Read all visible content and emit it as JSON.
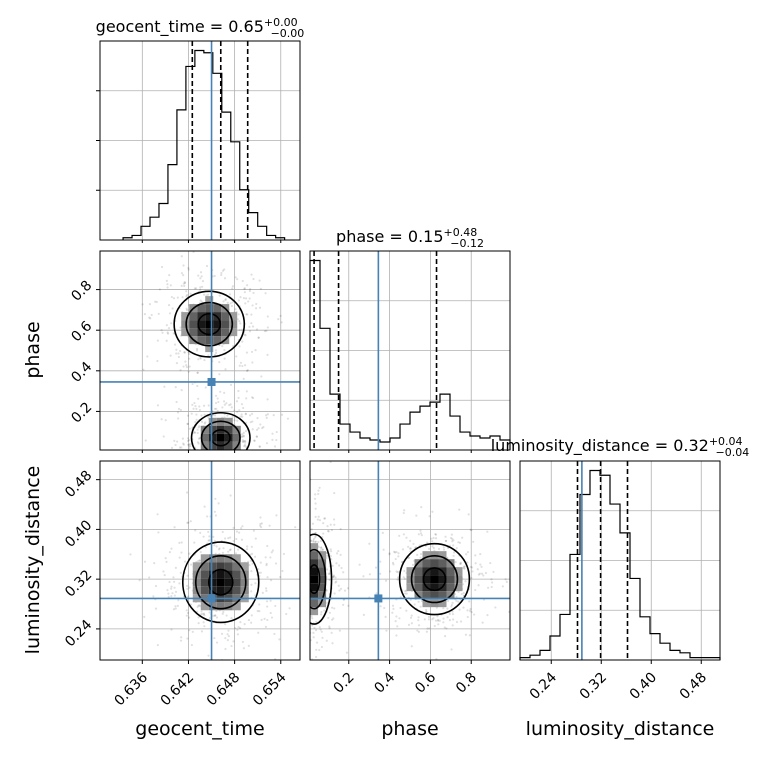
{
  "chart_data": {
    "type": "corner",
    "parameters": [
      "geocent_time",
      "phase",
      "luminosity_distance"
    ],
    "axis_labels": [
      "geocent_time",
      "phase",
      "luminosity_distance"
    ],
    "ranges": {
      "geocent_time": [
        0.6305,
        0.6565
      ],
      "phase": [
        0.01,
        0.99
      ],
      "luminosity_distance": [
        0.19,
        0.51
      ]
    },
    "ticks": {
      "geocent_time": [
        "0.636",
        "0.642",
        "0.648",
        "0.654"
      ],
      "phase": [
        "0.2",
        "0.4",
        "0.6",
        "0.8"
      ],
      "luminosity_distance": [
        "0.24",
        "0.32",
        "0.40",
        "0.48"
      ]
    },
    "truths": {
      "geocent_time": 0.645,
      "phase": 0.345,
      "luminosity_distance": 0.289
    },
    "titles": {
      "geocent_time": {
        "prefix": "geocent_time = ",
        "median": "0.65",
        "plus": "+0.00",
        "minus": "−0.00"
      },
      "phase": {
        "prefix": "phase = ",
        "median": "0.15",
        "plus": "+0.48",
        "minus": "−0.12"
      },
      "luminosity_distance": {
        "prefix": "luminosity_distance = ",
        "median": "0.32",
        "plus": "+0.04",
        "minus": "−0.04"
      }
    },
    "quantiles": {
      "geocent_time": [
        0.6425,
        0.6462,
        0.6497
      ],
      "phase": [
        0.03,
        0.15,
        0.63
      ],
      "luminosity_distance": [
        0.282,
        0.319,
        0.362
      ]
    },
    "histograms": {
      "geocent_time": {
        "edges_range": [
          0.6335,
          0.6545
        ],
        "counts": [
          1,
          2,
          6,
          10,
          16,
          33,
          57,
          76,
          83,
          82,
          73,
          56,
          43,
          22,
          12,
          6,
          2,
          1
        ]
      },
      "phase": {
        "edges_range": [
          0.01,
          0.99
        ],
        "counts": [
          95,
          61,
          28,
          13,
          9,
          6,
          5,
          4,
          6,
          13,
          19,
          22,
          24,
          28,
          17,
          9,
          7,
          6,
          7,
          5
        ]
      },
      "luminosity_distance": {
        "edges_range": [
          0.19,
          0.51
        ],
        "counts": [
          1,
          2,
          4,
          10,
          19,
          44,
          69,
          79,
          77,
          65,
          53,
          34,
          18,
          11,
          7,
          4,
          3,
          1,
          1,
          1
        ]
      }
    },
    "joint": {
      "phase_vs_geocent_time": {
        "modes": [
          [
            0.6462,
            0.07
          ],
          [
            0.6447,
            0.63
          ]
        ]
      },
      "luminosity_distance_vs_geocent_time": {
        "modes": [
          [
            0.6462,
            0.315
          ]
        ]
      },
      "luminosity_distance_vs_phase": {
        "modes": [
          [
            0.03,
            0.32
          ],
          [
            0.62,
            0.32
          ]
        ]
      }
    }
  }
}
